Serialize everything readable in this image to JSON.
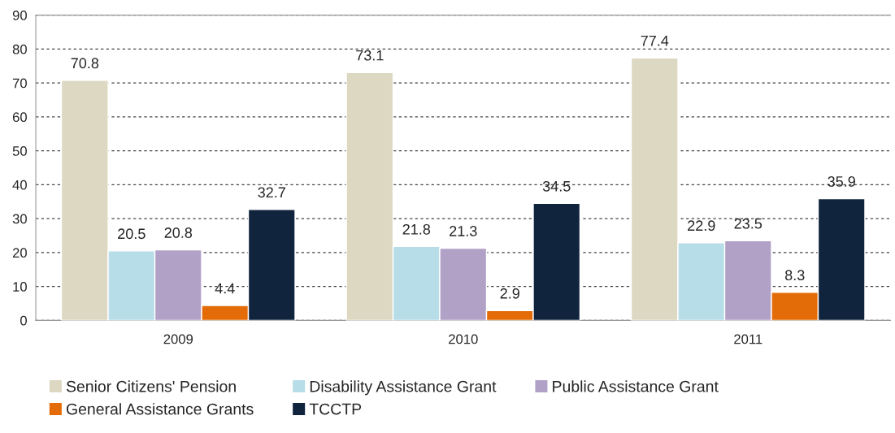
{
  "chart_data": {
    "type": "bar",
    "categories": [
      "2009",
      "2010",
      "2011"
    ],
    "series": [
      {
        "name": "Senior Citizens' Pension",
        "color": "#ddd8c2",
        "values": [
          70.8,
          73.1,
          77.4
        ]
      },
      {
        "name": "Disability Assistance Grant",
        "color": "#b7dee8",
        "values": [
          20.5,
          21.8,
          22.9
        ]
      },
      {
        "name": "Public Assistance Grant",
        "color": "#b2a1c7",
        "values": [
          20.8,
          21.3,
          23.5
        ]
      },
      {
        "name": "General Assistance Grants",
        "color": "#e36c09",
        "values": [
          4.4,
          2.9,
          8.3
        ]
      },
      {
        "name": "TCCTP",
        "color": "#10243e",
        "values": [
          32.7,
          34.5,
          35.9
        ]
      }
    ],
    "ylim": [
      0,
      90
    ],
    "yticks": [
      0,
      10,
      20,
      30,
      40,
      50,
      60,
      70,
      80,
      90
    ],
    "grid": "y",
    "line_style": "dashed",
    "legend": "bottom",
    "data_labels": true
  }
}
